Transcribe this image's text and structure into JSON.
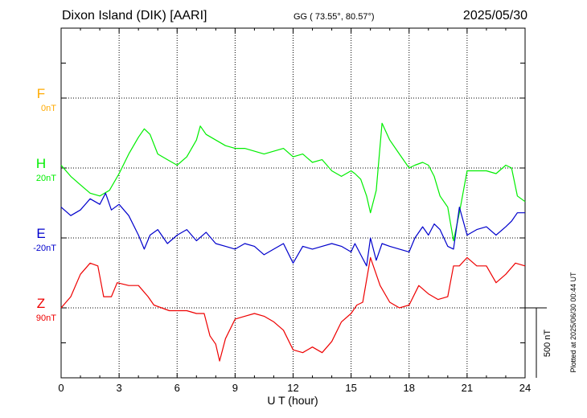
{
  "header": {
    "station": "Dixon Island (DIK)  [AARI]",
    "coords": "GG ( 73.55°,  80.57°)",
    "date": "2025/05/30"
  },
  "side_note": "Plotted at 2025/06/30 00:44 UT",
  "chart_data": {
    "type": "line",
    "xlabel": "U T (hour)",
    "xlim": [
      0,
      24
    ],
    "xticks": [
      "0",
      "3",
      "6",
      "9",
      "12",
      "15",
      "18",
      "21",
      "24"
    ],
    "scale_bar_label": "500 nT",
    "grid": true,
    "colors": {
      "F": "#ffaa00",
      "H": "#00ee00",
      "E": "#0000cc",
      "Z": "#ee0000"
    },
    "series": [
      {
        "name": "F",
        "baseline_label": "0nT",
        "x": [],
        "values": []
      },
      {
        "name": "H",
        "baseline_label": "20nT",
        "x": [
          0,
          0.5,
          1,
          1.5,
          2,
          2.5,
          3,
          3.5,
          4,
          4.3,
          4.6,
          5,
          5.5,
          6,
          6.5,
          7,
          7.2,
          7.5,
          8,
          8.5,
          9,
          9.5,
          10,
          10.5,
          11,
          11.5,
          12,
          12.5,
          13,
          13.5,
          14,
          14.5,
          15,
          15.2,
          15.5,
          15.8,
          16,
          16.3,
          16.6,
          17,
          17.5,
          18,
          18.3,
          18.7,
          19,
          19.3,
          19.6,
          20,
          20.3,
          20.6,
          21,
          21.5,
          22,
          22.5,
          23,
          23.3,
          23.6,
          24
        ],
        "values": [
          20,
          -60,
          -120,
          -180,
          -200,
          -160,
          -40,
          100,
          220,
          280,
          240,
          100,
          60,
          20,
          80,
          200,
          300,
          240,
          200,
          160,
          140,
          140,
          120,
          100,
          120,
          140,
          80,
          100,
          40,
          60,
          -20,
          -60,
          -20,
          -40,
          -80,
          -200,
          -320,
          -160,
          320,
          200,
          100,
          0,
          20,
          40,
          20,
          -60,
          -200,
          -280,
          -520,
          -320,
          -20,
          -20,
          -20,
          -40,
          20,
          0,
          -200,
          -240
        ]
      },
      {
        "name": "E",
        "baseline_label": "-20nT",
        "x": [
          0,
          0.5,
          1,
          1.5,
          2,
          2.3,
          2.6,
          3,
          3.5,
          4,
          4.3,
          4.6,
          5,
          5.5,
          6,
          6.5,
          7,
          7.5,
          8,
          8.5,
          9,
          9.5,
          10,
          10.5,
          11,
          11.5,
          12,
          12.5,
          13,
          13.5,
          14,
          14.5,
          15,
          15.2,
          15.5,
          15.8,
          16,
          16.3,
          16.6,
          17,
          17.5,
          18,
          18.3,
          18.7,
          19,
          19.3,
          19.6,
          20,
          20.3,
          20.6,
          21,
          21.5,
          22,
          22.5,
          23,
          23.3,
          23.6,
          24
        ],
        "values": [
          220,
          160,
          200,
          280,
          240,
          320,
          200,
          240,
          160,
          20,
          -80,
          20,
          60,
          -40,
          20,
          60,
          -20,
          40,
          -40,
          -60,
          -80,
          -40,
          -60,
          -120,
          -80,
          -40,
          -180,
          -60,
          -80,
          -60,
          -40,
          -60,
          -100,
          -40,
          -120,
          -200,
          0,
          -160,
          -40,
          -60,
          -80,
          -100,
          0,
          80,
          20,
          100,
          60,
          -60,
          -80,
          220,
          20,
          60,
          80,
          20,
          80,
          120,
          180,
          180
        ]
      },
      {
        "name": "Z",
        "baseline_label": "90nT",
        "x": [
          0,
          0.5,
          1,
          1.5,
          1.9,
          2.2,
          2.6,
          2.9,
          3.5,
          4,
          4.5,
          4.8,
          5.2,
          5.6,
          6,
          6.5,
          7,
          7.4,
          7.7,
          8,
          8.2,
          8.5,
          9,
          9.5,
          10,
          10.5,
          11,
          11.5,
          12,
          12.5,
          13,
          13.5,
          14,
          14.5,
          15,
          15.3,
          15.6,
          16,
          16.5,
          17,
          17.5,
          18,
          18.5,
          19,
          19.5,
          20,
          20.3,
          20.6,
          21,
          21.5,
          22,
          22.5,
          23,
          23.5,
          24
        ],
        "values": [
          0,
          80,
          240,
          320,
          300,
          80,
          80,
          180,
          160,
          160,
          80,
          20,
          0,
          -20,
          -20,
          -20,
          -40,
          -40,
          -200,
          -260,
          -380,
          -220,
          -80,
          -60,
          -40,
          -60,
          -100,
          -160,
          -300,
          -320,
          -280,
          -320,
          -240,
          -100,
          -40,
          20,
          40,
          360,
          160,
          40,
          0,
          20,
          160,
          100,
          60,
          80,
          300,
          300,
          360,
          300,
          300,
          180,
          240,
          320,
          300
        ]
      }
    ]
  }
}
